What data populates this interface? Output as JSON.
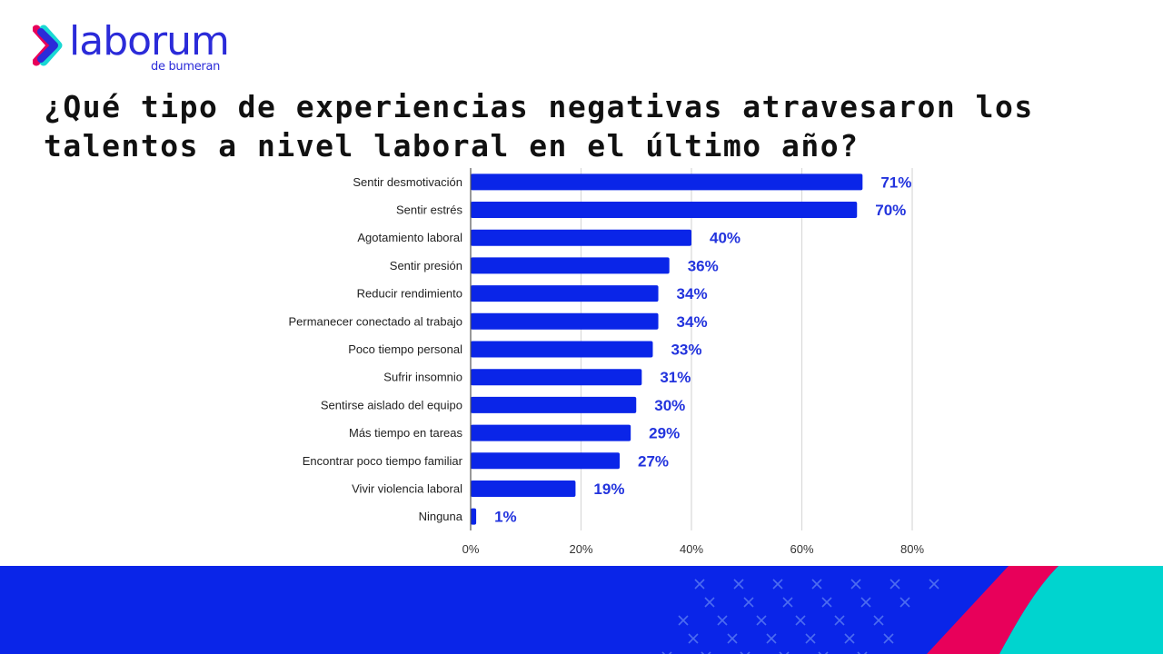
{
  "brand": {
    "name": "laborum",
    "subtitle": "de bumeran",
    "colors": {
      "primary": "#0a25e8",
      "pink": "#e8005a",
      "teal": "#00d4cf",
      "label": "#2233dd"
    }
  },
  "title": "¿Qué tipo de experiencias negativas atravesaron los talentos a nivel laboral en el último año?",
  "chart_data": {
    "type": "bar",
    "orientation": "horizontal",
    "title": "¿Qué tipo de experiencias negativas atravesaron los talentos a nivel laboral en el último año?",
    "xlabel": "",
    "ylabel": "",
    "categories": [
      "Sentir desmotivación",
      "Sentir estrés",
      "Agotamiento laboral",
      "Sentir presión",
      "Reducir rendimiento",
      "Permanecer conectado al trabajo",
      "Poco tiempo personal",
      "Sufrir insomnio",
      "Sentirse aislado del equipo",
      "Más tiempo en tareas",
      "Encontrar poco tiempo familiar",
      "Vivir violencia laboral",
      "Ninguna"
    ],
    "values": [
      71,
      70,
      40,
      36,
      34,
      34,
      33,
      31,
      30,
      29,
      27,
      19,
      1
    ],
    "data_labels": [
      "71%",
      "70%",
      "40%",
      "36%",
      "34%",
      "34%",
      "33%",
      "31%",
      "30%",
      "29%",
      "27%",
      "19%",
      "1%"
    ],
    "xlim": [
      0,
      80
    ],
    "xticks": [
      0,
      20,
      40,
      60,
      80
    ],
    "xtick_labels": [
      "0%",
      "20%",
      "40%",
      "60%",
      "80%"
    ],
    "grid": true,
    "legend": "none",
    "bar_color": "#0a25e8",
    "label_color": "#2233dd"
  }
}
